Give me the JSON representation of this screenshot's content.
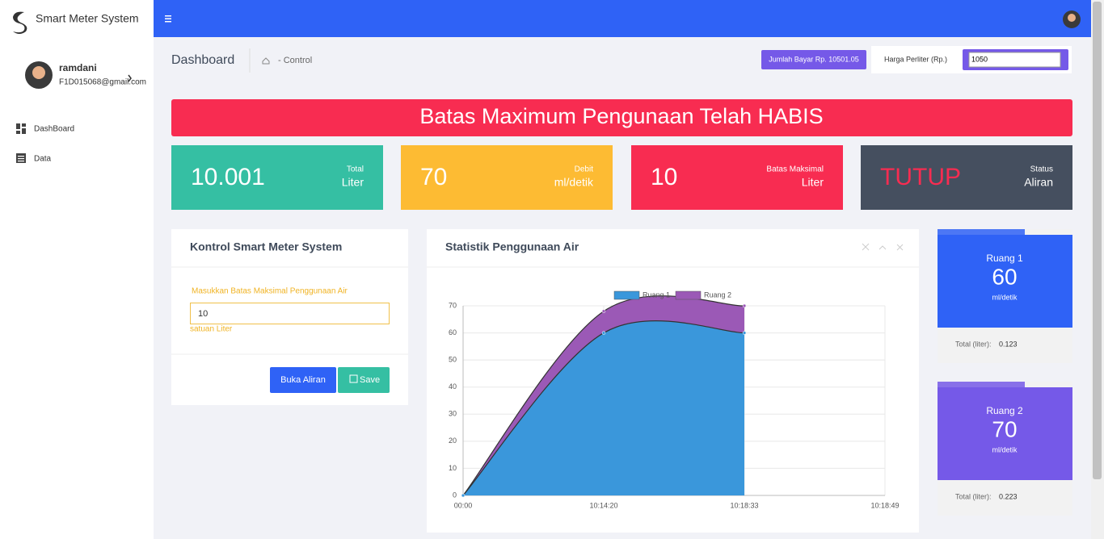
{
  "brand": "Smart Meter System",
  "user": {
    "name": "ramdani",
    "email": "F1D015068@gmail.com"
  },
  "nav": [
    "DashBoard",
    "Data"
  ],
  "header": {
    "title": "Dashboard",
    "breadcrumb": "- Control",
    "bill": "Jumlah Bayar Rp. 10501.05",
    "price_label": "Harga Perliter (Rp.)",
    "price_input": "1050"
  },
  "alert": "Batas Maximum Pengunaan Telah HABIS",
  "stats": [
    {
      "value": "10.001",
      "label": "Total",
      "unit": "Liter"
    },
    {
      "value": "70",
      "label": "Debit",
      "unit": "ml/detik"
    },
    {
      "value": "10",
      "label": "Batas Maksimal",
      "unit": "Liter"
    },
    {
      "value": "TUTUP",
      "label": "Status",
      "unit": "Aliran"
    }
  ],
  "control": {
    "title": "Kontrol Smart Meter System",
    "field_label": "Masukkan Batas Maksimal Penggunaan Air",
    "input": "10",
    "helper": "satuan Liter",
    "open_button": "Buka Aliran",
    "save_button": "Save"
  },
  "chart_data": {
    "type": "line",
    "title": "Statistik Penggunaan Air",
    "categories": [
      "00:00",
      "10:14:20",
      "10:18:33",
      "10:18:49"
    ],
    "series": [
      {
        "name": "Ruang 1",
        "color": "#3a97db",
        "values": [
          0,
          60,
          60,
          null
        ]
      },
      {
        "name": "Ruang 2",
        "color": "#9b59b6",
        "values": [
          0,
          68,
          70,
          null
        ]
      }
    ],
    "ylim": [
      0,
      70
    ],
    "yticks": [
      0,
      10,
      20,
      30,
      40,
      50,
      60,
      70
    ],
    "grid": true
  },
  "rooms": [
    {
      "name": "Ruang 1",
      "value": 60,
      "unit": "ml/detik",
      "total_label": "Total (liter):",
      "total": "0.123"
    },
    {
      "name": "Ruang 2",
      "value": 70,
      "unit": "ml/detik",
      "total_label": "Total (liter):",
      "total": "0.223"
    }
  ]
}
